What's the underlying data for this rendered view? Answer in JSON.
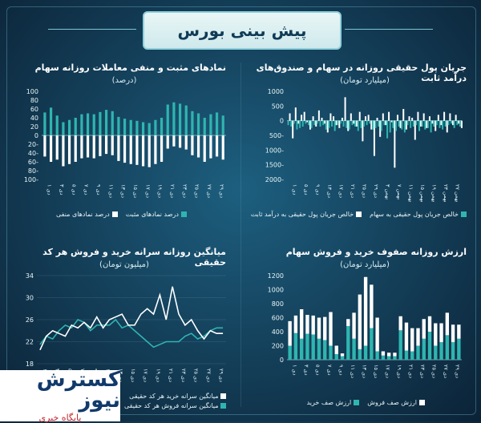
{
  "page": {
    "title": "پیش بینی بورس"
  },
  "logo": {
    "brand": "کسترش نیوز",
    "tagline": "پایگاه خبری"
  },
  "panels": {
    "tr": {
      "title": "جریان پول حقیقی روزانه در سهام و صندوق‌های درآمد ثابت",
      "subtitle": "(میلیارد تومان)"
    },
    "tl": {
      "title": "نمادهای مثبت و منفی معاملات روزانه سهام",
      "subtitle": "(درصد)"
    },
    "br": {
      "title": "ارزش روزانه صفوف خرید و فروش سهام",
      "subtitle": "(میلیارد تومان)"
    },
    "bl": {
      "title": "میانگین روزانه سرانه خرید و فروش هر کد حقیقی",
      "subtitle": "(میلیون تومان)"
    }
  },
  "colors": {
    "teal": "#2fb5b0",
    "white": "#ffffff",
    "axis": "#9fc7d3"
  },
  "chart_data": [
    {
      "id": "tr",
      "type": "bar",
      "categories": [
        "۱ دی",
        "۲",
        "۳",
        "۴",
        "۵",
        "۶",
        "۷",
        "۸",
        "۹",
        "۱۰",
        "۱۱",
        "۱۲",
        "۱۳",
        "۱۴",
        "۱۵",
        "۱۶",
        "۱۷",
        "۱۸",
        "۱۹",
        "۲۰",
        "۲۱",
        "۲۲",
        "۲۳",
        "۲۴",
        "۲۵",
        "۲۶",
        "۲۷",
        "۲۸",
        "۲۹",
        "۳۰",
        "۱ بهمن",
        "۲",
        "۳",
        "۴",
        "۵",
        "۶",
        "۷",
        "۸",
        "۹",
        "۱۰",
        "۱۱",
        "۱۲",
        "۱۳",
        "۱۴",
        "۱۵",
        "۱۶",
        "۱۷",
        "۱۸",
        "۱۹",
        "۲۰",
        "۲۱",
        "۲۲",
        "۲۳",
        "۲۴",
        "۲۵",
        "۲۶",
        "۲۷",
        "۲۸",
        "۲۹",
        "۳۰"
      ],
      "ylim": [
        -2000,
        1000
      ],
      "yticks": [
        "1000",
        "500",
        "0",
        "500-",
        "1000-",
        "1500-",
        "2000-"
      ],
      "xticks": [
        "۱ دی",
        "۵ دی",
        "۹ دی",
        "۱۳ دی",
        "۱۷ دی",
        "۲۱ دی",
        "۲۵ دی",
        "۲۹ دی",
        "۳ بهمن",
        "۷ بهمن",
        "۱۱ بهمن",
        "۱۵ بهمن",
        "۱۹ بهمن",
        "۲۳ بهمن",
        "۲۷ بهمن"
      ],
      "series": [
        {
          "name": "خالص جریان پول حقیقی به سهام",
          "color": "teal",
          "values": [
            -150,
            -200,
            -100,
            -300,
            -250,
            -200,
            -100,
            -150,
            -250,
            -150,
            -100,
            -200,
            -150,
            -300,
            -250,
            -200,
            -350,
            -150,
            -100,
            -200,
            -250,
            -300,
            -150,
            -200,
            -350,
            -250,
            -200,
            -150,
            -100,
            -300,
            -250,
            -200,
            -350,
            -150,
            -600,
            -400,
            -250,
            -350,
            -200,
            -300,
            -400,
            -150,
            -250,
            -200,
            -150,
            -350,
            -200,
            -300,
            -250,
            -400,
            -200,
            -150,
            -250,
            -300,
            -200,
            -150,
            -100,
            -250,
            -150,
            -200
          ]
        },
        {
          "name": "خالص جریان پول حقیقی به درآمد ثابت",
          "color": "white",
          "values": [
            250,
            -600,
            450,
            -100,
            200,
            300,
            -50,
            -300,
            150,
            -200,
            350,
            100,
            -100,
            -400,
            250,
            150,
            -150,
            -250,
            100,
            800,
            -350,
            250,
            -100,
            -200,
            300,
            -700,
            150,
            200,
            -300,
            -1200,
            100,
            -550,
            250,
            -150,
            300,
            -50,
            -1600,
            200,
            -250,
            400,
            -300,
            150,
            100,
            -650,
            300,
            -200,
            250,
            -250,
            150,
            -100,
            -350,
            200,
            -150,
            300,
            -400,
            250,
            -150,
            200,
            -100,
            -250
          ]
        }
      ]
    },
    {
      "id": "tl",
      "type": "bar",
      "categories": [
        "۱ دی",
        "۲",
        "۳",
        "۴",
        "۵",
        "۶",
        "۷",
        "۸",
        "۹",
        "۱۰",
        "۱۱",
        "۱۲",
        "۱۳",
        "۱۴",
        "۱۵",
        "۱۶",
        "۱۷",
        "۱۸",
        "۱۹",
        "۲۰",
        "۲۱",
        "۲۲",
        "۲۳",
        "۲۴",
        "۲۵",
        "۲۶",
        "۲۷",
        "۲۸",
        "۲۹",
        "۳۰"
      ],
      "ylim": [
        -100,
        100
      ],
      "yticks": [
        "100",
        "80",
        "60",
        "40",
        "20",
        "0",
        "20-",
        "40-",
        "60-",
        "80-",
        "100-"
      ],
      "xticks": [
        "۱ دی",
        "۳ دی",
        "۵ دی",
        "۷ دی",
        "۹ دی",
        "۱۱ دی",
        "۱۳ دی",
        "۱۵ دی",
        "۱۷ دی",
        "۱۹ دی",
        "۲۱ دی",
        "۲۳ دی",
        "۲۵ دی",
        "۲۷ دی",
        "۲۹ دی"
      ],
      "series": [
        {
          "name": "درصد نمادهای مثبت",
          "color": "teal",
          "values": [
            52,
            63,
            45,
            30,
            35,
            40,
            48,
            50,
            48,
            53,
            58,
            55,
            42,
            38,
            35,
            33,
            30,
            28,
            35,
            40,
            70,
            75,
            72,
            68,
            55,
            50,
            40,
            48,
            52,
            45
          ]
        },
        {
          "name": "درصد نمادهای منفی",
          "color": "white",
          "values": [
            -48,
            -60,
            -55,
            -70,
            -65,
            -60,
            -52,
            -50,
            -52,
            -47,
            -42,
            -45,
            -58,
            -62,
            -65,
            -67,
            -70,
            -72,
            -65,
            -60,
            -30,
            -25,
            -28,
            -32,
            -45,
            -50,
            -60,
            -52,
            -48,
            -55
          ]
        }
      ]
    },
    {
      "id": "br",
      "type": "bar",
      "categories": [
        "۱ دی",
        "۲",
        "۳",
        "۴",
        "۵",
        "۶",
        "۷",
        "۸",
        "۹",
        "۱۰",
        "۱۱",
        "۱۲",
        "۱۳",
        "۱۴",
        "۱۵",
        "۱۶",
        "۱۷",
        "۱۸",
        "۱۹",
        "۲۰",
        "۲۱",
        "۲۲",
        "۲۳",
        "۲۴",
        "۲۵",
        "۲۶",
        "۲۷",
        "۲۸",
        "۲۹",
        "۳۰"
      ],
      "ylim": [
        0,
        1200
      ],
      "yticks": [
        "1200",
        "1000",
        "800",
        "600",
        "400",
        "200",
        "0"
      ],
      "xticks": [
        "۱ دی",
        "۳ دی",
        "۵ دی",
        "۷ دی",
        "۹ دی",
        "۱۱ دی",
        "۱۳ دی",
        "۱۵ دی",
        "۱۷ دی",
        "۱۹ دی",
        "۲۱ دی",
        "۲۳ دی",
        "۲۵ دی",
        "۲۷ دی",
        "۲۹ دی"
      ],
      "series": [
        {
          "name": "ارزش صف خرید",
          "color": "teal",
          "values": [
            200,
            380,
            300,
            370,
            360,
            300,
            280,
            200,
            80,
            50,
            480,
            300,
            150,
            200,
            450,
            120,
            60,
            50,
            50,
            420,
            130,
            120,
            200,
            300,
            400,
            200,
            250,
            350,
            250,
            300
          ]
        },
        {
          "name": "ارزش صف فروش",
          "color": "white",
          "values": [
            350,
            250,
            420,
            270,
            270,
            300,
            330,
            480,
            120,
            40,
            100,
            370,
            780,
            980,
            620,
            480,
            60,
            50,
            50,
            200,
            400,
            330,
            250,
            280,
            220,
            320,
            270,
            320,
            250,
            200
          ]
        }
      ]
    },
    {
      "id": "bl",
      "type": "line",
      "x": [
        "۱ دی",
        "۲",
        "۳",
        "۴",
        "۵",
        "۶",
        "۷",
        "۸",
        "۹",
        "۱۰",
        "۱۱",
        "۱۲",
        "۱۳",
        "۱۴",
        "۱۵",
        "۱۶",
        "۱۷",
        "۱۸",
        "۱۹",
        "۲۰",
        "۲۱",
        "۲۲",
        "۲۳",
        "۲۴",
        "۲۵",
        "۲۶",
        "۲۷",
        "۲۸",
        "۲۹",
        "۳۰"
      ],
      "ylim": [
        18,
        34
      ],
      "yticks": [
        "34",
        "30",
        "26",
        "22",
        "18"
      ],
      "xticks": [
        "۱ دی",
        "۳ دی",
        "۵ دی",
        "۷ دی",
        "۹ دی",
        "۱۱ دی",
        "۱۳ دی",
        "۱۵ دی",
        "۱۷ دی",
        "۱۹ دی",
        "۲۱ دی",
        "۲۳ دی",
        "۲۵ دی",
        "۲۷ دی",
        "۲۹ دی"
      ],
      "series": [
        {
          "name": "میانگین سرانه فروش هر کد حقیقی",
          "color": "teal",
          "values": [
            21.5,
            23,
            22.5,
            24,
            25,
            24.5,
            26,
            25.5,
            24,
            25,
            25,
            25,
            26,
            24.5,
            25,
            24,
            23,
            22,
            21,
            21.5,
            22,
            22,
            22,
            23,
            23.5,
            22.5,
            23,
            24,
            24.5,
            24.5
          ]
        },
        {
          "name": "میانگین سرانه خرید هر کد حقیقی",
          "color": "white",
          "values": [
            20.5,
            23,
            24,
            23.5,
            23,
            25,
            24.5,
            25.5,
            24.5,
            26.5,
            24.5,
            26,
            26.5,
            27,
            25,
            25,
            27,
            28,
            27,
            30.5,
            26,
            32,
            27,
            25,
            26,
            24,
            22.5,
            24,
            23.5,
            23.5
          ]
        }
      ]
    }
  ]
}
